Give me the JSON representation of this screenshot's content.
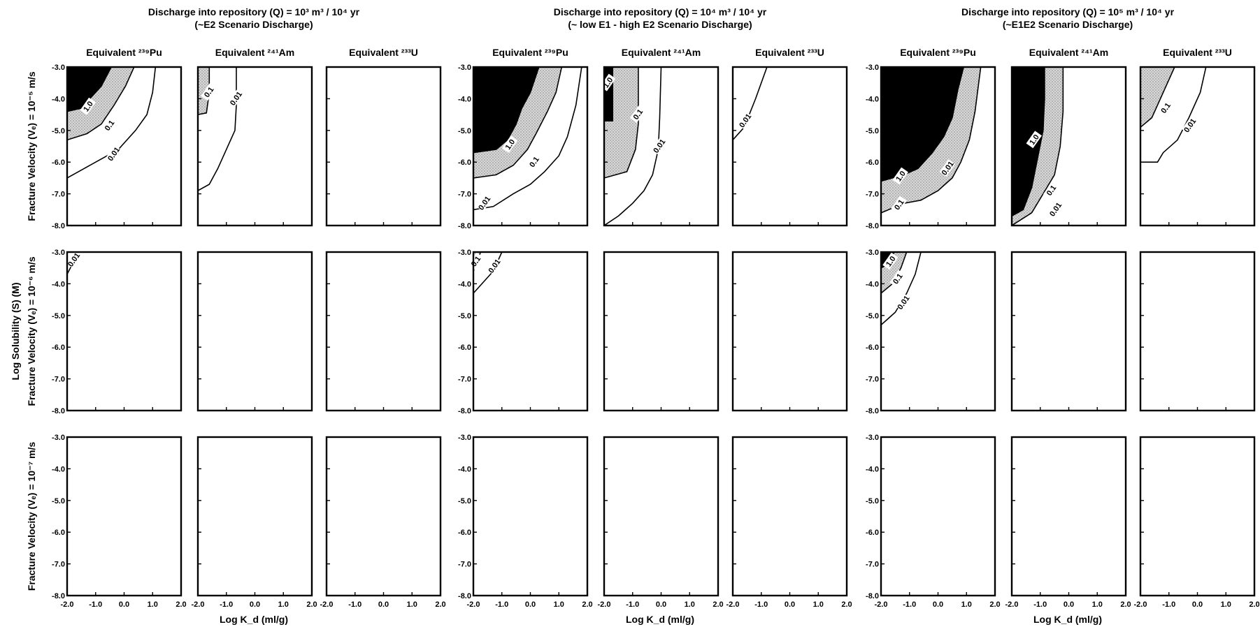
{
  "chart_data": {
    "type": "contour",
    "groups": [
      {
        "title_line1": "Discharge into repository (Q) = 10³ m³ / 10⁴ yr",
        "title_line2": "(~E2 Scenario Discharge)"
      },
      {
        "title_line1": "Discharge into repository (Q) = 10⁴ m³ / 10⁴ yr",
        "title_line2": "(~ low E1 - high E2 Scenario Discharge)"
      },
      {
        "title_line1": "Discharge into repository (Q) = 10⁵ m³ / 10⁴ yr",
        "title_line2": "(~E1E2 Scenario Discharge)"
      }
    ],
    "column_labels": [
      "Equivalent ²³⁹Pu",
      "Equivalent ²⁴¹Am",
      "Equivalent ²³³U"
    ],
    "row_labels": [
      "Fracture Velocity (Vₑ) = 10⁻⁵ m/s",
      "Fracture Velocity (Vₑ) = 10⁻⁶ m/s",
      "Fracture Velocity (Vₑ) = 10⁻⁷ m/s"
    ],
    "y_axis_title": "Log Solubility (S) (M)",
    "x_axis_title": "Log K_d (ml/g)",
    "xlim": [
      -2.0,
      2.0
    ],
    "ylim": [
      -8.0,
      -3.0
    ],
    "x_ticks": [
      "-2.0",
      "-1.0",
      "0.0",
      "1.0",
      "2.0"
    ],
    "y_ticks": [
      "-3.0",
      "-4.0",
      "-5.0",
      "-6.0",
      "-7.0",
      "-8.0"
    ],
    "contour_levels": [
      "1.0",
      "0.1",
      "0.01"
    ],
    "fill_colors": {
      "above_1": "#000000",
      "between_0.1_and_1": "#d8d8d8"
    },
    "panels": [
      {
        "group": 0,
        "row": 0,
        "col": 0,
        "contours": [
          {
            "level": "1.0",
            "points": [
              [
                -2.0,
                -4.4
              ],
              [
                -1.5,
                -4.3
              ],
              [
                -1.2,
                -4.0
              ],
              [
                -0.8,
                -3.6
              ],
              [
                -0.45,
                -3.0
              ]
            ]
          },
          {
            "level": "0.1",
            "points": [
              [
                -2.0,
                -5.3
              ],
              [
                -1.3,
                -5.1
              ],
              [
                -0.8,
                -4.8
              ],
              [
                -0.35,
                -4.2
              ],
              [
                0.05,
                -3.6
              ],
              [
                0.35,
                -3.0
              ]
            ]
          },
          {
            "level": "0.01",
            "points": [
              [
                -2.0,
                -6.5
              ],
              [
                -1.4,
                -6.2
              ],
              [
                -0.8,
                -5.9
              ],
              [
                -0.2,
                -5.6
              ],
              [
                0.4,
                -5.0
              ],
              [
                0.8,
                -4.5
              ],
              [
                1.0,
                -3.8
              ],
              [
                1.1,
                -3.0
              ]
            ]
          }
        ],
        "labels": [
          {
            "text": "1.0",
            "at": [
              -1.25,
              -4.25
            ]
          },
          {
            "text": "0.1",
            "at": [
              -0.5,
              -4.85
            ]
          },
          {
            "text": "0.01",
            "at": [
              -0.35,
              -5.75
            ]
          }
        ]
      },
      {
        "group": 0,
        "row": 0,
        "col": 1,
        "contours": [
          {
            "level": "0.1",
            "points": [
              [
                -2.0,
                -4.5
              ],
              [
                -1.7,
                -4.45
              ],
              [
                -1.6,
                -3.8
              ],
              [
                -1.6,
                -3.0
              ]
            ]
          },
          {
            "level": "0.01",
            "points": [
              [
                -2.0,
                -6.9
              ],
              [
                -1.6,
                -6.7
              ],
              [
                -1.3,
                -6.2
              ],
              [
                -1.0,
                -5.6
              ],
              [
                -0.7,
                -5.0
              ],
              [
                -0.65,
                -4.2
              ],
              [
                -0.65,
                -3.0
              ]
            ]
          }
        ],
        "labels": [
          {
            "text": "0.1",
            "at": [
              -1.6,
              -3.8
            ]
          },
          {
            "text": "0.01",
            "at": [
              -0.65,
              -4.0
            ]
          }
        ]
      },
      {
        "group": 0,
        "row": 0,
        "col": 2,
        "contours": [],
        "labels": []
      },
      {
        "group": 1,
        "row": 0,
        "col": 0,
        "contours": [
          {
            "level": "1.0",
            "points": [
              [
                -2.0,
                -5.7
              ],
              [
                -1.2,
                -5.6
              ],
              [
                -0.8,
                -5.3
              ],
              [
                -0.5,
                -4.8
              ],
              [
                -0.3,
                -4.3
              ],
              [
                0.0,
                -3.8
              ],
              [
                0.3,
                -3.0
              ]
            ]
          },
          {
            "level": "0.1",
            "points": [
              [
                -2.0,
                -6.5
              ],
              [
                -1.2,
                -6.4
              ],
              [
                -0.6,
                -6.1
              ],
              [
                -0.1,
                -5.6
              ],
              [
                0.2,
                -5.1
              ],
              [
                0.6,
                -4.4
              ],
              [
                0.9,
                -3.8
              ],
              [
                1.1,
                -3.0
              ]
            ]
          },
          {
            "level": "0.01",
            "points": [
              [
                -2.0,
                -7.5
              ],
              [
                -1.3,
                -7.4
              ],
              [
                -0.6,
                -7.0
              ],
              [
                0.0,
                -6.7
              ],
              [
                0.5,
                -6.3
              ],
              [
                1.0,
                -5.8
              ],
              [
                1.3,
                -5.2
              ],
              [
                1.6,
                -4.2
              ],
              [
                1.8,
                -3.0
              ]
            ]
          }
        ],
        "labels": [
          {
            "text": "1.0",
            "at": [
              -0.7,
              -5.45
            ]
          },
          {
            "text": "0.1",
            "at": [
              0.15,
              -6.0
            ]
          },
          {
            "text": "0.01",
            "at": [
              -1.6,
              -7.3
            ]
          }
        ]
      },
      {
        "group": 1,
        "row": 0,
        "col": 1,
        "contours": [
          {
            "level": "1.0",
            "points": [
              [
                -2.0,
                -4.7
              ],
              [
                -1.7,
                -4.7
              ],
              [
                -1.7,
                -3.0
              ]
            ]
          },
          {
            "level": "0.1",
            "points": [
              [
                -2.0,
                -6.5
              ],
              [
                -1.2,
                -6.3
              ],
              [
                -0.9,
                -5.6
              ],
              [
                -0.8,
                -4.8
              ],
              [
                -0.8,
                -3.0
              ]
            ]
          },
          {
            "level": "0.01",
            "points": [
              [
                -2.0,
                -8.0
              ],
              [
                -1.5,
                -7.7
              ],
              [
                -1.0,
                -7.3
              ],
              [
                -0.6,
                -6.9
              ],
              [
                -0.3,
                -6.4
              ],
              [
                -0.1,
                -5.6
              ],
              [
                -0.05,
                -4.6
              ],
              [
                0.0,
                -3.0
              ]
            ]
          }
        ],
        "labels": [
          {
            "text": "1.0",
            "at": [
              -1.85,
              -3.5
            ]
          },
          {
            "text": "0.1",
            "at": [
              -0.8,
              -4.5
            ]
          },
          {
            "text": "0.01",
            "at": [
              -0.05,
              -5.5
            ]
          }
        ]
      },
      {
        "group": 1,
        "row": 0,
        "col": 2,
        "contours": [
          {
            "level": "0.01",
            "points": [
              [
                -2.0,
                -5.3
              ],
              [
                -1.6,
                -4.9
              ],
              [
                -1.2,
                -4.0
              ],
              [
                -0.8,
                -3.0
              ]
            ]
          }
        ],
        "labels": [
          {
            "text": "0.01",
            "at": [
              -1.55,
              -4.7
            ]
          }
        ]
      },
      {
        "group": 2,
        "row": 0,
        "col": 0,
        "contours": [
          {
            "level": "1.0",
            "points": [
              [
                -2.0,
                -6.6
              ],
              [
                -1.2,
                -6.4
              ],
              [
                -0.7,
                -6.2
              ],
              [
                -0.2,
                -5.7
              ],
              [
                0.2,
                -5.2
              ],
              [
                0.5,
                -4.6
              ],
              [
                0.7,
                -3.7
              ],
              [
                0.9,
                -3.0
              ]
            ]
          },
          {
            "level": "0.1",
            "points": [
              [
                -2.0,
                -7.6
              ],
              [
                -1.2,
                -7.3
              ],
              [
                -0.6,
                -7.2
              ],
              [
                0.0,
                -6.9
              ],
              [
                0.5,
                -6.5
              ],
              [
                0.8,
                -6.0
              ],
              [
                1.1,
                -5.3
              ],
              [
                1.3,
                -4.4
              ],
              [
                1.5,
                -3.0
              ]
            ]
          }
        ],
        "labels": [
          {
            "text": "1.0",
            "at": [
              -1.3,
              -6.45
            ]
          },
          {
            "text": "0.1",
            "at": [
              -1.35,
              -7.35
            ]
          },
          {
            "text": "0.01",
            "at": [
              0.35,
              -6.2
            ]
          }
        ]
      },
      {
        "group": 2,
        "row": 0,
        "col": 1,
        "contours": [
          {
            "level": "1.0",
            "points": [
              [
                -2.0,
                -7.7
              ],
              [
                -1.6,
                -7.5
              ],
              [
                -1.3,
                -6.8
              ],
              [
                -1.1,
                -5.9
              ],
              [
                -0.9,
                -5.0
              ],
              [
                -0.85,
                -4.0
              ],
              [
                -0.85,
                -3.0
              ]
            ]
          },
          {
            "level": "0.1",
            "points": [
              [
                -2.0,
                -8.0
              ],
              [
                -1.3,
                -7.6
              ],
              [
                -0.9,
                -7.0
              ],
              [
                -0.5,
                -6.4
              ],
              [
                -0.3,
                -5.5
              ],
              [
                -0.2,
                -4.4
              ],
              [
                -0.2,
                -3.0
              ]
            ]
          }
        ],
        "labels": [
          {
            "text": "1.0",
            "at": [
              -1.2,
              -5.3
            ]
          },
          {
            "text": "0.1",
            "at": [
              -0.6,
              -6.9
            ]
          },
          {
            "text": "0.01",
            "at": [
              -0.45,
              -7.5
            ]
          }
        ]
      },
      {
        "group": 2,
        "row": 0,
        "col": 2,
        "contours": [
          {
            "level": "0.1",
            "points": [
              [
                -2.0,
                -4.9
              ],
              [
                -1.6,
                -4.6
              ],
              [
                -1.3,
                -4.0
              ],
              [
                -1.0,
                -3.4
              ],
              [
                -0.8,
                -3.0
              ]
            ]
          },
          {
            "level": "0.01",
            "points": [
              [
                -2.0,
                -6.0
              ],
              [
                -1.4,
                -6.0
              ],
              [
                -1.2,
                -5.7
              ],
              [
                -0.7,
                -5.3
              ],
              [
                -0.3,
                -4.6
              ],
              [
                0.1,
                -3.8
              ],
              [
                0.3,
                -3.0
              ]
            ]
          }
        ],
        "labels": [
          {
            "text": "0.1",
            "at": [
              -1.1,
              -4.3
            ]
          },
          {
            "text": "0.01",
            "at": [
              -0.25,
              -4.85
            ]
          }
        ]
      },
      {
        "group": 0,
        "row": 1,
        "col": 0,
        "contours": [
          {
            "level": "0.01",
            "points": [
              [
                -2.0,
                -3.7
              ],
              [
                -1.8,
                -3.35
              ],
              [
                -1.65,
                -3.0
              ]
            ]
          }
        ],
        "labels": [
          {
            "text": "0.01",
            "at": [
              -1.75,
              -3.25
            ]
          }
        ]
      },
      {
        "group": 1,
        "row": 1,
        "col": 0,
        "contours": [
          {
            "level": "0.1",
            "points": [
              [
                -2.0,
                -3.6
              ],
              [
                -1.85,
                -3.3
              ],
              [
                -1.75,
                -3.0
              ]
            ]
          },
          {
            "level": "0.01",
            "points": [
              [
                -2.0,
                -4.3
              ],
              [
                -1.7,
                -4.0
              ],
              [
                -1.3,
                -3.6
              ],
              [
                -1.0,
                -3.0
              ]
            ]
          }
        ],
        "labels": [
          {
            "text": "0.1",
            "at": [
              -1.9,
              -3.3
            ]
          },
          {
            "text": "0.01",
            "at": [
              -1.25,
              -3.45
            ]
          }
        ]
      },
      {
        "group": 2,
        "row": 1,
        "col": 0,
        "contours": [
          {
            "level": "1.0",
            "points": [
              [
                -2.0,
                -3.5
              ],
              [
                -1.65,
                -3.35
              ],
              [
                -1.55,
                -3.0
              ]
            ]
          },
          {
            "level": "0.1",
            "points": [
              [
                -2.0,
                -4.3
              ],
              [
                -1.6,
                -4.0
              ],
              [
                -1.3,
                -3.5
              ],
              [
                -1.1,
                -3.0
              ]
            ]
          },
          {
            "level": "0.01",
            "points": [
              [
                -2.0,
                -5.3
              ],
              [
                -1.5,
                -4.9
              ],
              [
                -1.1,
                -4.3
              ],
              [
                -0.8,
                -3.7
              ],
              [
                -0.6,
                -3.0
              ]
            ]
          }
        ],
        "labels": [
          {
            "text": "1.0",
            "at": [
              -1.65,
              -3.3
            ]
          },
          {
            "text": "0.1",
            "at": [
              -1.4,
              -3.85
            ]
          },
          {
            "text": "0.01",
            "at": [
              -1.2,
              -4.6
            ]
          }
        ]
      }
    ]
  }
}
